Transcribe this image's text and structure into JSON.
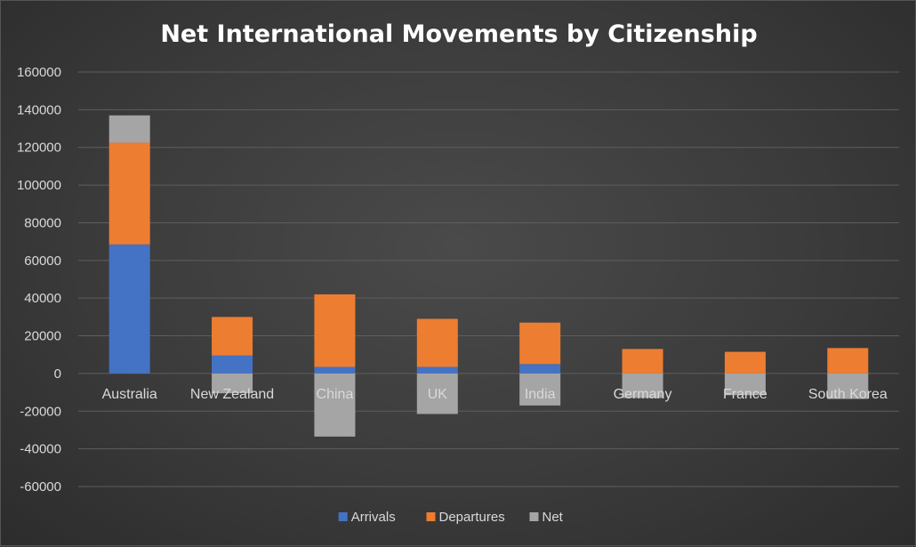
{
  "chart_data": {
    "type": "bar",
    "stacked": true,
    "title": "Net International Movements by Citizenship",
    "xlabel": "",
    "ylabel": "",
    "ylim": [
      -60000,
      160000
    ],
    "ytick_step": 20000,
    "yticks": [
      "160000",
      "140000",
      "120000",
      "100000",
      "80000",
      "60000",
      "40000",
      "20000",
      "0",
      "-20000",
      "-40000",
      "-60000"
    ],
    "grid": true,
    "legend_position": "bottom",
    "categories": [
      "Australia",
      "New Zealand",
      "China",
      "UK",
      "India",
      "Germany",
      "France",
      "South Korea"
    ],
    "series": [
      {
        "name": "Arrivals",
        "color": "#4472c4",
        "values": [
          68500,
          9500,
          3500,
          3500,
          5000,
          0,
          0,
          0
        ]
      },
      {
        "name": "Departures",
        "color": "#ed7d31",
        "values": [
          54000,
          20500,
          38500,
          25500,
          22000,
          13000,
          11500,
          13500
        ]
      },
      {
        "name": "Net",
        "color": "#a5a5a5",
        "values": [
          14500,
          -10500,
          -33500,
          -21500,
          -17000,
          -13000,
          -11500,
          -13500
        ]
      }
    ]
  }
}
